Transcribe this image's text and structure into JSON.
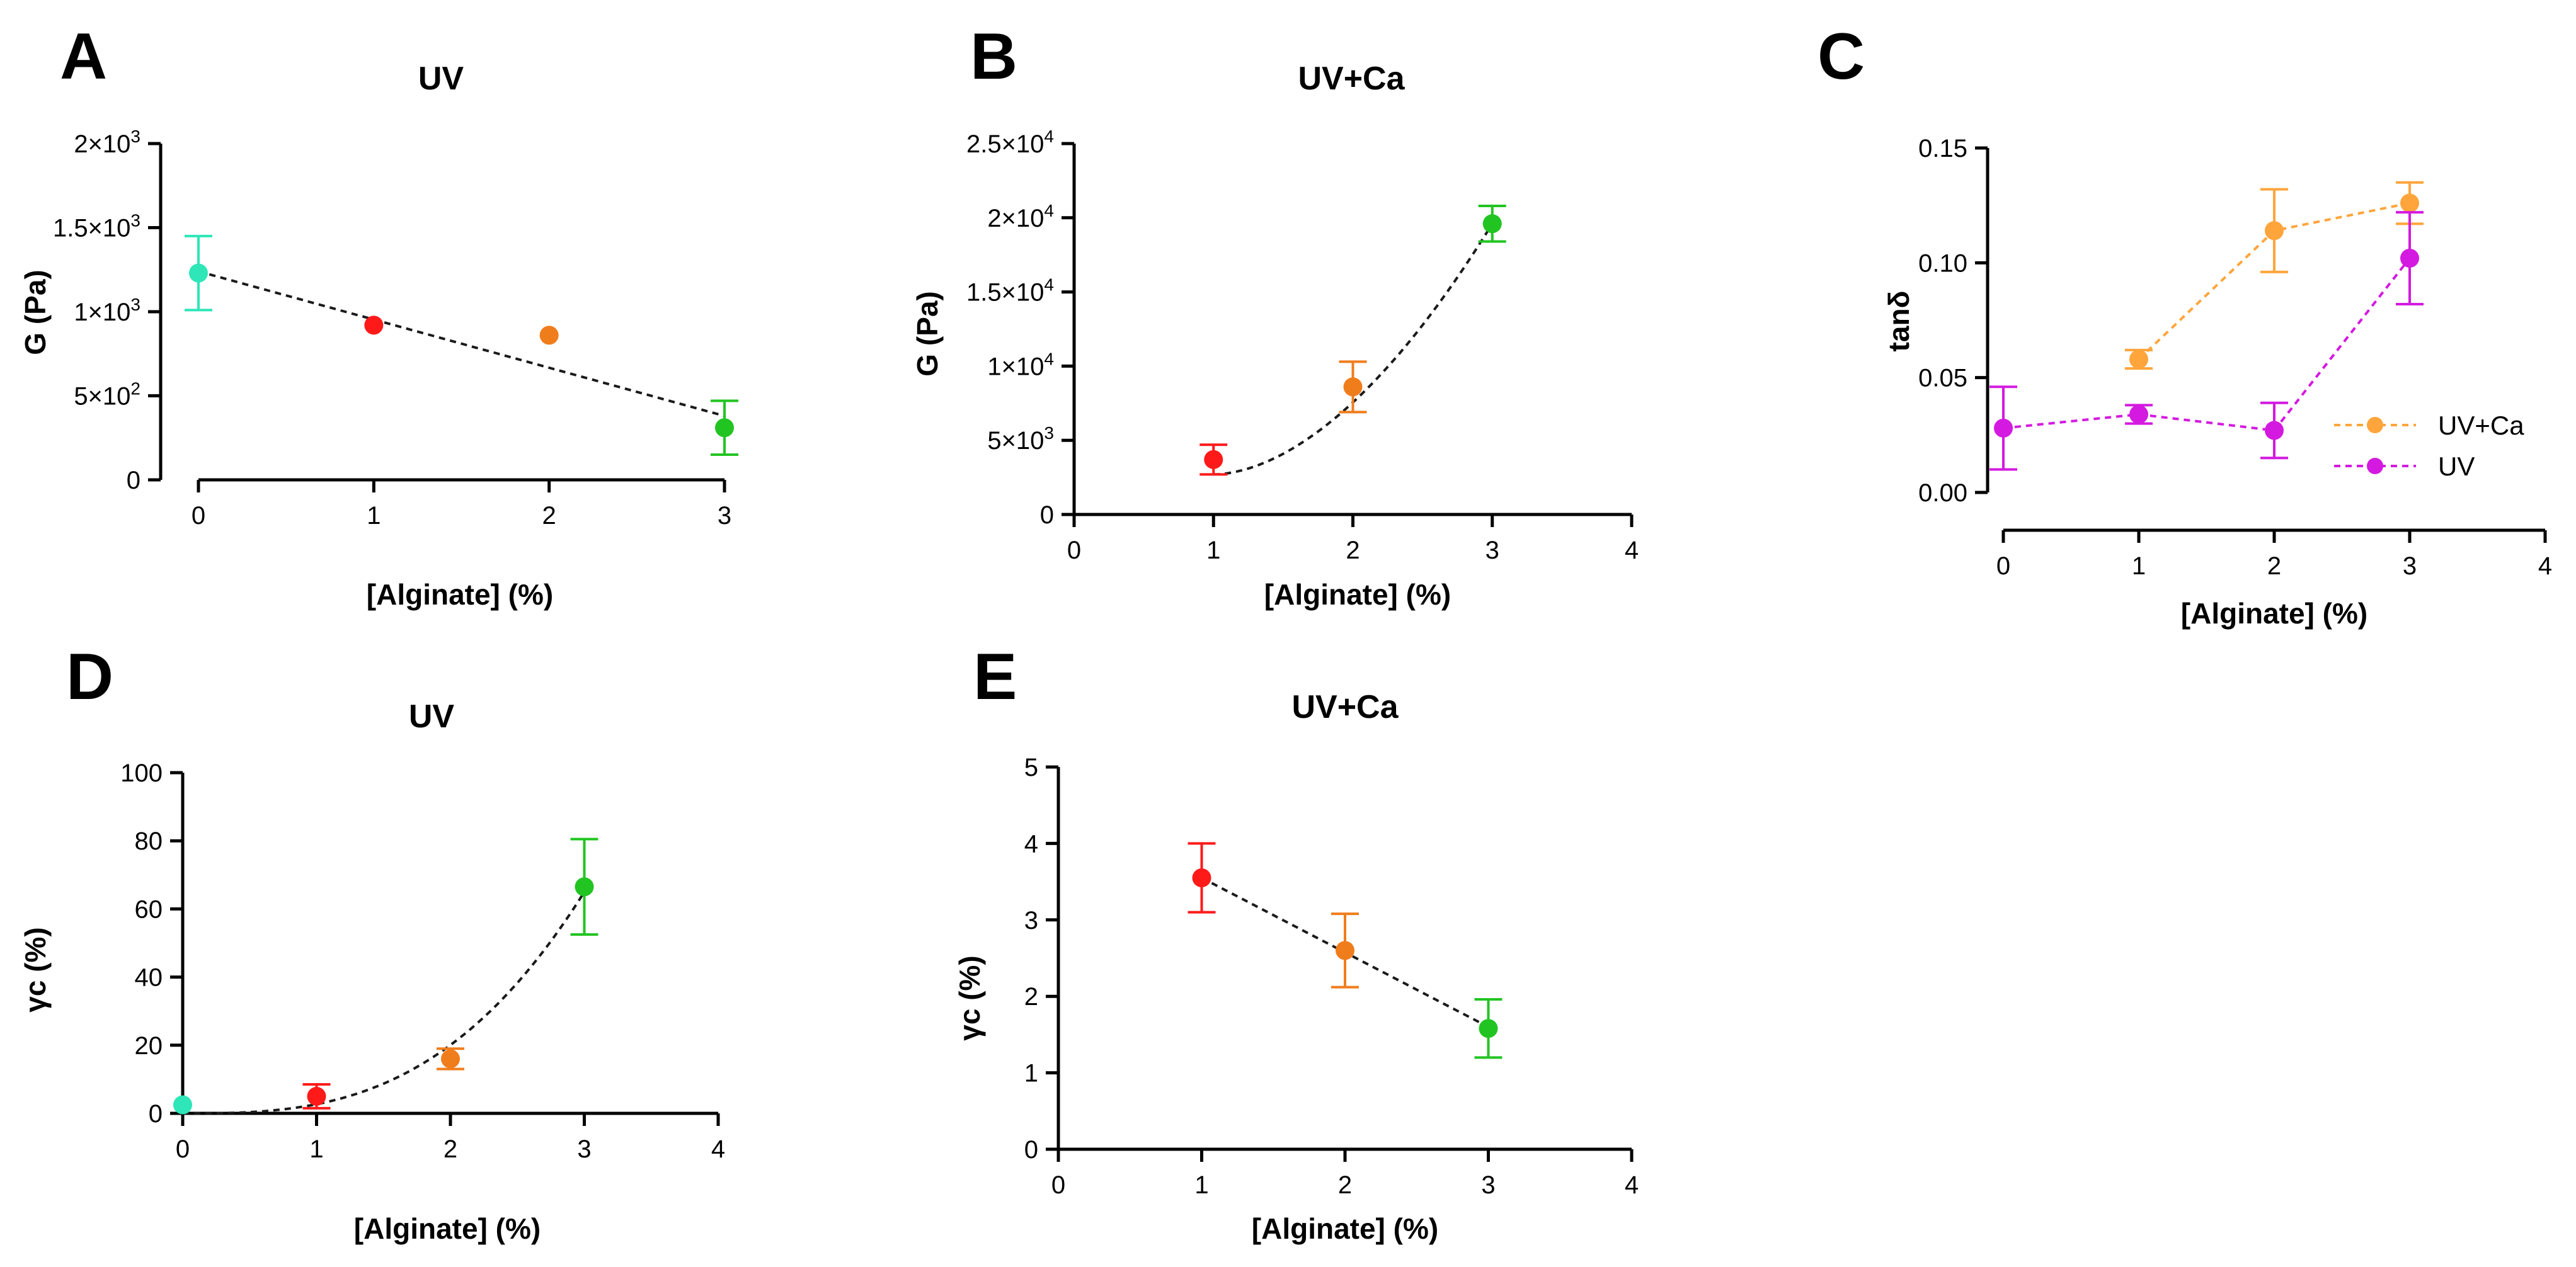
{
  "chart_data": [
    {
      "panel": "A",
      "type": "scatter",
      "title": "UV",
      "xlabel": "[Alginate] (%)",
      "ylabel": "G (Pa)",
      "xlim": [
        0,
        3
      ],
      "ylim": [
        0,
        2000
      ],
      "xticks": [
        0,
        1,
        2,
        3
      ],
      "yticks": [
        0,
        500,
        1000,
        1500,
        2000
      ],
      "ytick_labels": [
        {
          "text": "0",
          "sup": ""
        },
        {
          "text": "5×10",
          "sup": "2"
        },
        {
          "text": "1×10",
          "sup": "3"
        },
        {
          "text": "1.5×10",
          "sup": "3"
        },
        {
          "text": "2×10",
          "sup": "3"
        }
      ],
      "fit": {
        "kind": "linear",
        "x": [
          0,
          3
        ],
        "y": [
          1240,
          380
        ]
      },
      "points": [
        {
          "x": 0,
          "y": 1230,
          "err": 220,
          "color": "#2ee6b8"
        },
        {
          "x": 1,
          "y": 920,
          "err": 0,
          "color": "#ff1a1a"
        },
        {
          "x": 2,
          "y": 860,
          "err": 0,
          "color": "#f07d1c"
        },
        {
          "x": 3,
          "y": 310,
          "err": 160,
          "color": "#22c422"
        }
      ]
    },
    {
      "panel": "B",
      "type": "scatter",
      "title": "UV+Ca",
      "xlabel": "[Alginate] (%)",
      "ylabel": "G (Pa)",
      "xlim": [
        0,
        4
      ],
      "ylim": [
        0,
        25000
      ],
      "xticks": [
        0,
        1,
        2,
        3,
        4
      ],
      "yticks": [
        0,
        5000,
        10000,
        15000,
        20000,
        25000
      ],
      "ytick_labels": [
        {
          "text": "0",
          "sup": ""
        },
        {
          "text": "5×10",
          "sup": "3"
        },
        {
          "text": "1×10",
          "sup": "4"
        },
        {
          "text": "1.5×10",
          "sup": "4"
        },
        {
          "text": "2×10",
          "sup": "4"
        },
        {
          "text": "2.5×10",
          "sup": "4"
        }
      ],
      "fit": {
        "kind": "power",
        "x": [
          1,
          3
        ],
        "y": [
          2700,
          19600
        ],
        "exponent": 1.8
      },
      "points": [
        {
          "x": 1,
          "y": 3700,
          "err": 1000,
          "color": "#ff1a1a"
        },
        {
          "x": 2,
          "y": 8600,
          "err": 1700,
          "color": "#f07d1c"
        },
        {
          "x": 3,
          "y": 19600,
          "err": 1200,
          "color": "#22c422"
        }
      ]
    },
    {
      "panel": "C",
      "type": "line",
      "title": "",
      "xlabel": "[Alginate] (%)",
      "ylabel": "tanδ",
      "xlim": [
        0,
        4
      ],
      "ylim": [
        0,
        0.15
      ],
      "xticks": [
        0,
        1,
        2,
        3,
        4
      ],
      "yticks": [
        0,
        0.05,
        0.1,
        0.15
      ],
      "ytick_labels": [
        {
          "text": "0.00",
          "sup": ""
        },
        {
          "text": "0.05",
          "sup": ""
        },
        {
          "text": "0.10",
          "sup": ""
        },
        {
          "text": "0.15",
          "sup": ""
        }
      ],
      "legend_position": "right",
      "series": [
        {
          "name": "UV+Ca",
          "color": "#ffa53c",
          "x": [
            1,
            2,
            3
          ],
          "y": [
            0.058,
            0.114,
            0.126
          ],
          "err": [
            0.004,
            0.018,
            0.009
          ]
        },
        {
          "name": "UV",
          "color": "#d41ae0",
          "x": [
            0,
            1,
            2,
            3
          ],
          "y": [
            0.028,
            0.034,
            0.027,
            0.102
          ],
          "err": [
            0.018,
            0.004,
            0.012,
            0.02
          ]
        }
      ]
    },
    {
      "panel": "D",
      "type": "scatter",
      "title": "UV",
      "xlabel": "[Alginate] (%)",
      "ylabel": "γc (%)",
      "xlim": [
        0,
        4
      ],
      "ylim": [
        0,
        100
      ],
      "xticks": [
        0,
        1,
        2,
        3,
        4
      ],
      "yticks": [
        0,
        20,
        40,
        60,
        80,
        100
      ],
      "ytick_labels": [
        {
          "text": "0",
          "sup": ""
        },
        {
          "text": "20",
          "sup": ""
        },
        {
          "text": "40",
          "sup": ""
        },
        {
          "text": "60",
          "sup": ""
        },
        {
          "text": "80",
          "sup": ""
        },
        {
          "text": "100",
          "sup": ""
        }
      ],
      "fit": {
        "kind": "power",
        "x": [
          0,
          3
        ],
        "y": [
          0,
          65
        ],
        "exponent": 2.9
      },
      "points": [
        {
          "x": 0,
          "y": 2.5,
          "err": 0,
          "color": "#2ee6b8"
        },
        {
          "x": 1,
          "y": 5,
          "err": 3.5,
          "color": "#ff1a1a"
        },
        {
          "x": 2,
          "y": 16,
          "err": 3,
          "color": "#f07d1c"
        },
        {
          "x": 3,
          "y": 66.5,
          "err": 14,
          "color": "#22c422"
        }
      ]
    },
    {
      "panel": "E",
      "type": "scatter",
      "title": "UV+Ca",
      "xlabel": "[Alginate] (%)",
      "ylabel": "γc (%)",
      "xlim": [
        0,
        4
      ],
      "ylim": [
        0,
        5
      ],
      "xticks": [
        0,
        1,
        2,
        3,
        4
      ],
      "yticks": [
        0,
        1,
        2,
        3,
        4,
        5
      ],
      "ytick_labels": [
        {
          "text": "0",
          "sup": ""
        },
        {
          "text": "1",
          "sup": ""
        },
        {
          "text": "2",
          "sup": ""
        },
        {
          "text": "3",
          "sup": ""
        },
        {
          "text": "4",
          "sup": ""
        },
        {
          "text": "5",
          "sup": ""
        }
      ],
      "fit": {
        "kind": "linear",
        "x": [
          1,
          3
        ],
        "y": [
          3.55,
          1.6
        ]
      },
      "points": [
        {
          "x": 1,
          "y": 3.55,
          "err": 0.45,
          "color": "#ff1a1a"
        },
        {
          "x": 2,
          "y": 2.6,
          "err": 0.48,
          "color": "#f07d1c"
        },
        {
          "x": 3,
          "y": 1.58,
          "err": 0.38,
          "color": "#22c422"
        }
      ]
    }
  ]
}
